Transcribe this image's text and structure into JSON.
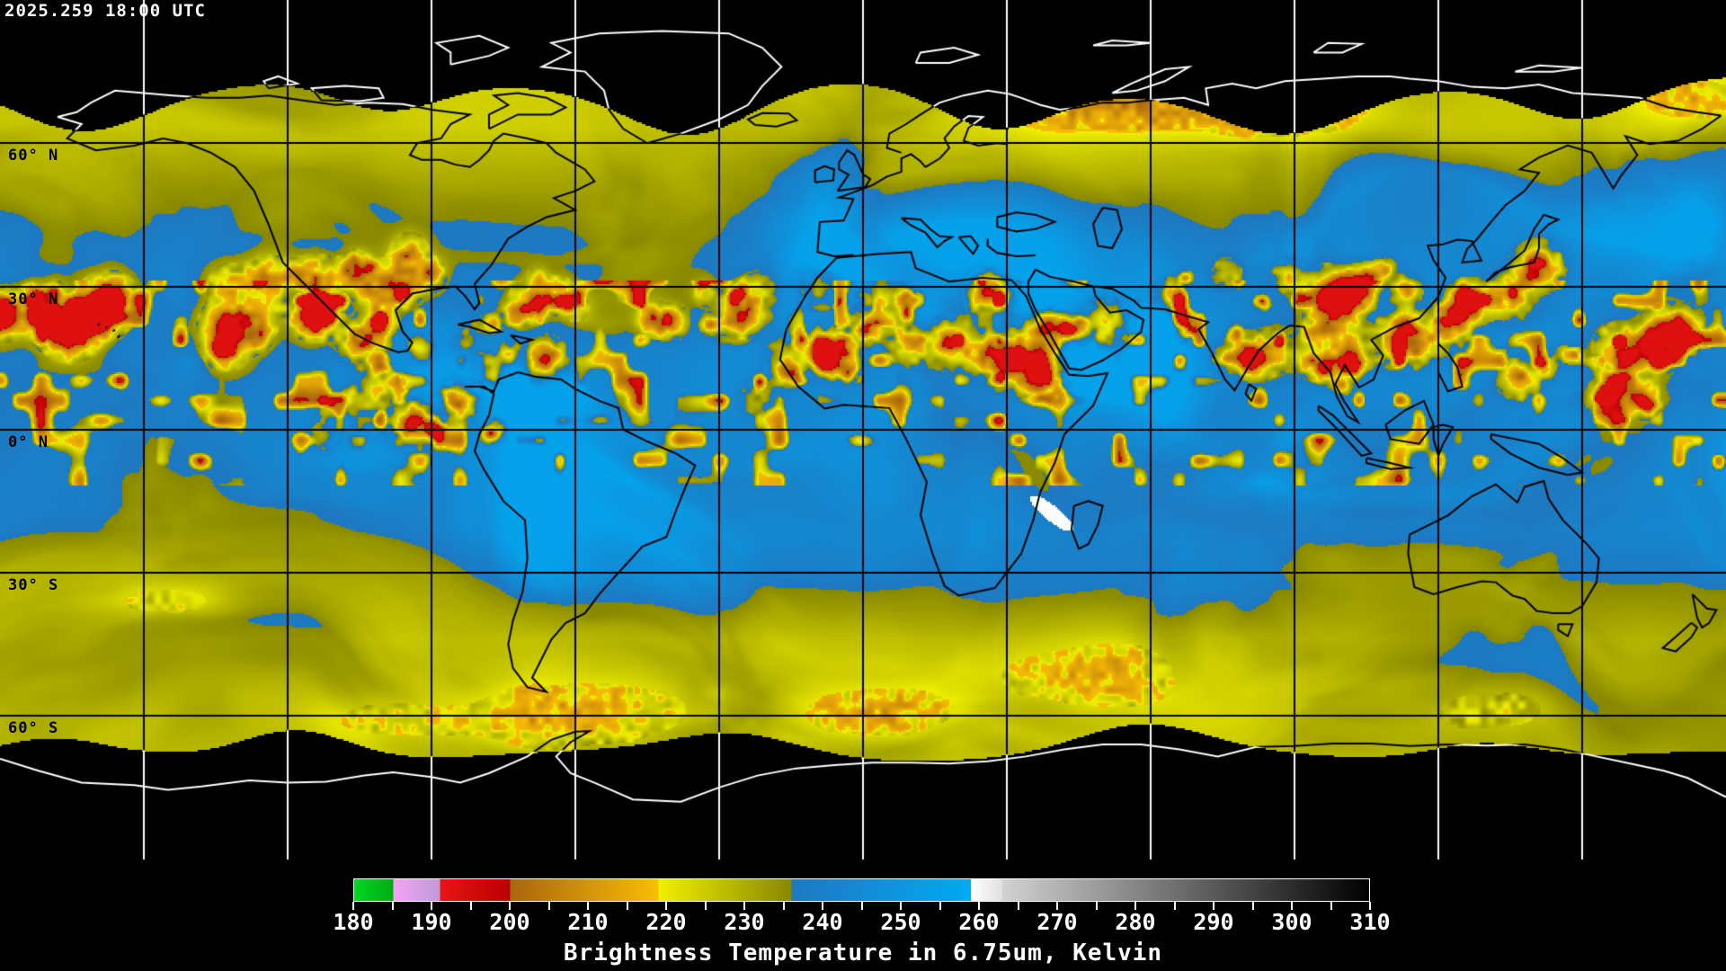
{
  "header": {
    "timestamp": "2025.259 18:00 UTC"
  },
  "map": {
    "latitude_labels": [
      {
        "text": "60° N",
        "lat": 60
      },
      {
        "text": "30° N",
        "lat": 30
      },
      {
        "text": "0° N",
        "lat": 0
      },
      {
        "text": "30° S",
        "lat": -30
      },
      {
        "text": "60° S",
        "lat": -60
      }
    ],
    "grid": {
      "lon_step_deg": 30,
      "lat_step_deg": 30
    },
    "colors": {
      "background": "#000000",
      "coast_on_data": "#000000",
      "coast_on_void": "#ffffff",
      "grid_on_data": "#000000",
      "grid_on_void": "#ffffff"
    }
  },
  "colorbar": {
    "range": [
      180,
      310
    ],
    "minor_tick_step": 5,
    "major_ticks": [
      180,
      190,
      200,
      210,
      220,
      230,
      240,
      250,
      260,
      270,
      280,
      290,
      300,
      310
    ],
    "segments": [
      {
        "from": 180,
        "to": 185,
        "start": "#00d822",
        "end": "#00aa14"
      },
      {
        "from": 185,
        "to": 191,
        "start": "#f4a4f4",
        "end": "#c09ad8"
      },
      {
        "from": 191,
        "to": 200,
        "start": "#e81414",
        "end": "#ba0000"
      },
      {
        "from": 200,
        "to": 219,
        "start": "#aa660c",
        "end": "#f8be06"
      },
      {
        "from": 219,
        "to": 236,
        "start": "#f0f000",
        "end": "#888800"
      },
      {
        "from": 236,
        "to": 259,
        "start": "#1e78c0",
        "end": "#00aaf4"
      },
      {
        "from": 259,
        "to": 263,
        "start": "#ffffff",
        "end": "#e0e0e0"
      },
      {
        "from": 263,
        "to": 310,
        "start": "#d2d2d2",
        "end": "#000000"
      }
    ]
  },
  "footer": {
    "caption": "Brightness Temperature in 6.75um, Kelvin"
  },
  "chart_data": {
    "type": "heatmap",
    "title": "Brightness Temperature in 6.75um, Kelvin",
    "timestamp": "2025.259 18:00 UTC",
    "units": "Kelvin",
    "wavelength": "6.75um",
    "colorbar_range": [
      180,
      310
    ],
    "colorbar_major_ticks": [
      180,
      190,
      200,
      210,
      220,
      230,
      240,
      250,
      260,
      270,
      280,
      290,
      300,
      310
    ],
    "colorbar_minor_tick_step": 5,
    "latitude_gridlines_deg": [
      60,
      30,
      0,
      -30,
      -60
    ],
    "longitude_gridline_step_deg": 30,
    "legend_position": "bottom"
  }
}
